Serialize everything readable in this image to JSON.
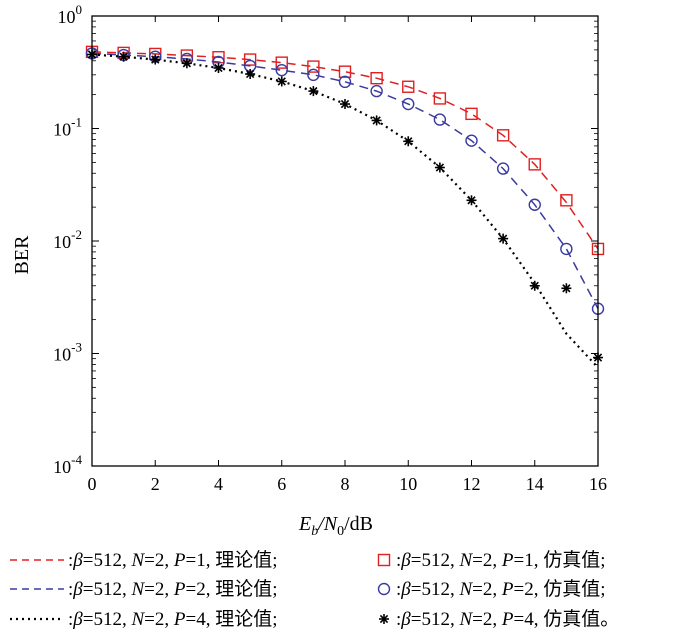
{
  "chart_data": {
    "type": "line",
    "yscale": "log",
    "ylabel": "BER",
    "xlabel": {
      "main": "E",
      "sub1": "b",
      "mid": "/N",
      "sub2": "0",
      "unit": "/dB"
    },
    "xlim": [
      0,
      16
    ],
    "ylim": [
      0.0001,
      1
    ],
    "xticks": [
      "0",
      "2",
      "4",
      "6",
      "8",
      "10",
      "12",
      "14",
      "16"
    ],
    "yticks": [
      {
        "base": "10",
        "exp": "0"
      },
      {
        "base": "10",
        "exp": "-1"
      },
      {
        "base": "10",
        "exp": "-2"
      },
      {
        "base": "10",
        "exp": "-3"
      },
      {
        "base": "10",
        "exp": "-4"
      }
    ],
    "grid": false,
    "legend_position": "bottom",
    "series": [
      {
        "id": "p1-theory",
        "kind": "line",
        "style": "dashed",
        "color": "#e02020",
        "x": [
          0,
          1,
          2,
          3,
          4,
          5,
          6,
          7,
          8,
          9,
          10,
          11,
          12,
          13,
          14,
          15,
          16
        ],
        "y": [
          0.48,
          0.47,
          0.46,
          0.445,
          0.43,
          0.41,
          0.385,
          0.355,
          0.32,
          0.28,
          0.235,
          0.185,
          0.135,
          0.087,
          0.048,
          0.022,
          0.0085
        ]
      },
      {
        "id": "p1-sim",
        "kind": "markers",
        "marker": "square",
        "color": "#e02020",
        "x": [
          0,
          1,
          2,
          3,
          4,
          5,
          6,
          7,
          8,
          9,
          10,
          11,
          12,
          13,
          14,
          15,
          16
        ],
        "y": [
          0.48,
          0.47,
          0.46,
          0.445,
          0.43,
          0.41,
          0.385,
          0.355,
          0.32,
          0.28,
          0.235,
          0.185,
          0.135,
          0.087,
          0.048,
          0.023,
          0.0085
        ]
      },
      {
        "id": "p2-theory",
        "kind": "line",
        "style": "dashed",
        "color": "#3a3aa0",
        "x": [
          0,
          1,
          2,
          3,
          4,
          5,
          6,
          7,
          8,
          9,
          10,
          11,
          12,
          13,
          14,
          15,
          16
        ],
        "y": [
          0.465,
          0.45,
          0.435,
          0.415,
          0.39,
          0.36,
          0.33,
          0.3,
          0.26,
          0.215,
          0.165,
          0.12,
          0.078,
          0.044,
          0.021,
          0.0085,
          0.0025
        ]
      },
      {
        "id": "p2-sim",
        "kind": "markers",
        "marker": "circle",
        "color": "#3a3aa0",
        "x": [
          0,
          1,
          2,
          3,
          4,
          5,
          6,
          7,
          8,
          9,
          10,
          11,
          12,
          13,
          14,
          15,
          16
        ],
        "y": [
          0.465,
          0.45,
          0.435,
          0.415,
          0.39,
          0.36,
          0.33,
          0.3,
          0.26,
          0.215,
          0.165,
          0.12,
          0.078,
          0.044,
          0.021,
          0.0085,
          0.0025
        ]
      },
      {
        "id": "p4-theory",
        "kind": "line",
        "style": "dotted",
        "color": "#000000",
        "x": [
          0,
          1,
          2,
          3,
          4,
          5,
          6,
          7,
          8,
          9,
          10,
          11,
          12,
          13,
          14,
          15,
          16
        ],
        "y": [
          0.455,
          0.435,
          0.41,
          0.38,
          0.345,
          0.305,
          0.262,
          0.215,
          0.165,
          0.118,
          0.077,
          0.045,
          0.023,
          0.0105,
          0.0042,
          0.0015,
          0.00075
        ]
      },
      {
        "id": "p4-sim",
        "kind": "markers",
        "marker": "asterisk",
        "color": "#000000",
        "x": [
          0,
          1,
          2,
          3,
          4,
          5,
          6,
          7,
          8,
          9,
          10,
          11,
          12,
          13,
          14,
          15,
          16
        ],
        "y": [
          0.455,
          0.435,
          0.41,
          0.38,
          0.345,
          0.305,
          0.262,
          0.215,
          0.165,
          0.118,
          0.077,
          0.045,
          0.023,
          0.0105,
          0.004,
          0.0038,
          0.00092
        ]
      }
    ],
    "legend": [
      {
        "series": "p1-theory",
        "sep": ":",
        "beta": "β",
        "text": "=512, ",
        "nsym": "N",
        "ntext": "=2, ",
        "psym": "P",
        "ptext": "=1, ",
        "kind": "理论值;"
      },
      {
        "series": "p1-sim",
        "sep": ":",
        "beta": "β",
        "text": "=512, ",
        "nsym": "N",
        "ntext": "=2, ",
        "psym": "P",
        "ptext": "=1, ",
        "kind": "仿真值;"
      },
      {
        "series": "p2-theory",
        "sep": ":",
        "beta": "β",
        "text": "=512, ",
        "nsym": "N",
        "ntext": "=2, ",
        "psym": "P",
        "ptext": "=2, ",
        "kind": "理论值;"
      },
      {
        "series": "p2-sim",
        "sep": ":",
        "beta": "β",
        "text": "=512, ",
        "nsym": "N",
        "ntext": "=2, ",
        "psym": "P",
        "ptext": "=2, ",
        "kind": "仿真值;"
      },
      {
        "series": "p4-theory",
        "sep": ":",
        "beta": "β",
        "text": "=512, ",
        "nsym": "N",
        "ntext": "=2, ",
        "psym": "P",
        "ptext": "=4, ",
        "kind": "理论值;"
      },
      {
        "series": "p4-sim",
        "sep": ":",
        "beta": "β",
        "text": "=512, ",
        "nsym": "N",
        "ntext": "=2, ",
        "psym": "P",
        "ptext": "=4, ",
        "kind": "仿真值。"
      }
    ]
  }
}
